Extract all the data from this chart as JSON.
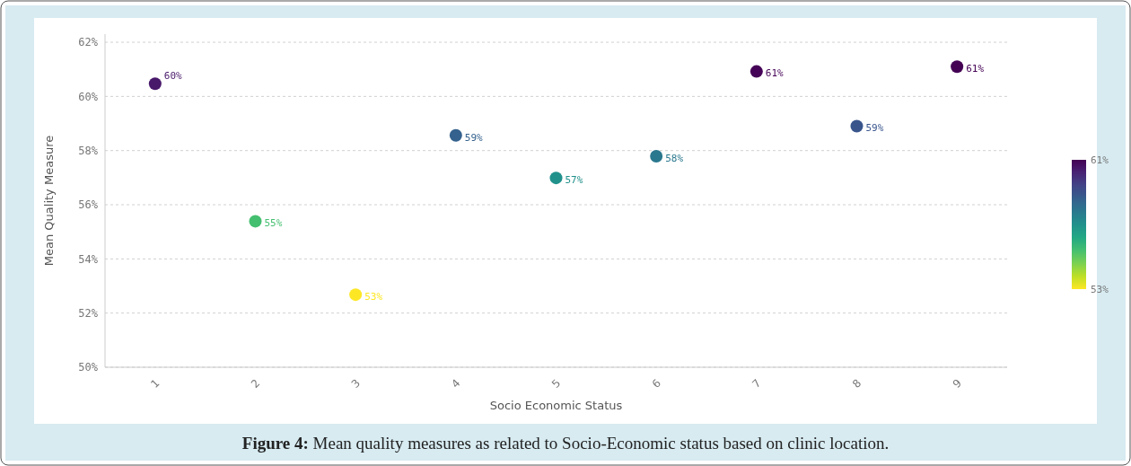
{
  "chart_data": {
    "type": "scatter",
    "xlabel": "Socio Economic Status",
    "ylabel": "Mean Quality Measure",
    "categories": [
      "1",
      "2",
      "3",
      "4",
      "5",
      "6",
      "7",
      "8",
      "9"
    ],
    "values": [
      60.47,
      55.39,
      52.68,
      58.56,
      56.99,
      57.79,
      60.92,
      58.9,
      61.1
    ],
    "value_labels": [
      "60%",
      "55%",
      "53%",
      "59%",
      "57%",
      "58%",
      "61%",
      "59%",
      "61%"
    ],
    "cvalues": [
      60.47,
      55.39,
      52.68,
      58.56,
      56.99,
      57.79,
      60.92,
      58.9,
      61.1
    ],
    "clim": [
      53,
      61
    ],
    "cticks": [
      {
        "value": 61,
        "label": "61%"
      },
      {
        "value": 53,
        "label": "53%"
      }
    ],
    "ylim": [
      50,
      62.3
    ],
    "yticks": [
      {
        "value": 50,
        "label": "50%"
      },
      {
        "value": 52,
        "label": "52%"
      },
      {
        "value": 54,
        "label": "54%"
      },
      {
        "value": 56,
        "label": "56%"
      },
      {
        "value": 58,
        "label": "58%"
      },
      {
        "value": 60,
        "label": "60%"
      },
      {
        "value": 62,
        "label": "62%"
      }
    ],
    "grid": "y",
    "marker": "circle",
    "annotations": [
      "Figure 4: Mean quality measures as related to Socio-Economic status based on clinic location."
    ]
  }
}
